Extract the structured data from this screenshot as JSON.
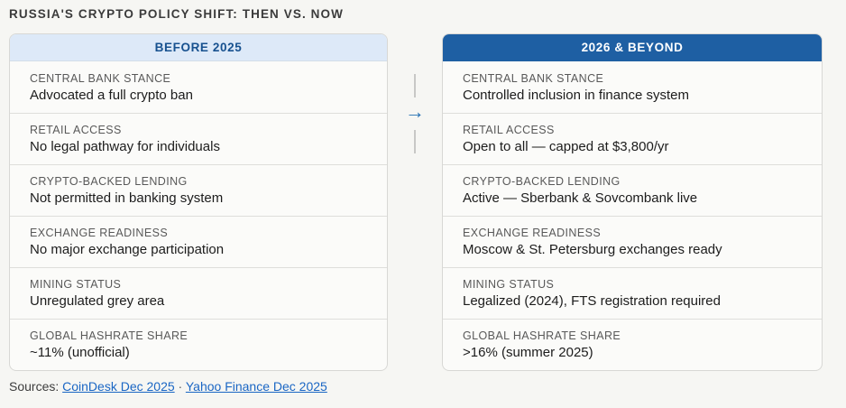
{
  "page": {
    "title": "RUSSIA'S CRYPTO POLICY SHIFT: THEN VS. NOW",
    "sources": {
      "prefix": "Sources:",
      "separator": "·",
      "links": [
        {
          "label": "CoinDesk Dec 2025"
        },
        {
          "label": "Yahoo Finance Dec 2025"
        }
      ]
    }
  },
  "colors": {
    "page_bg": "#f6f6f3",
    "card_bg": "#fbfbf9",
    "card_border": "#d8d8d5",
    "header_light_bg": "#dde9f8",
    "header_light_text": "#17518f",
    "header_solid_bg": "#1e5fa3",
    "header_solid_text": "#ffffff",
    "label_text": "#595959",
    "value_text": "#1c1c1c",
    "arrow_blue": "#2470b3",
    "link_blue": "#1a66c4"
  },
  "comparison": {
    "arrow_icon": "→",
    "columns": [
      {
        "id": "before",
        "header": "BEFORE 2025",
        "rows": [
          {
            "label": "CENTRAL BANK STANCE",
            "value": "Advocated a full crypto ban"
          },
          {
            "label": "RETAIL ACCESS",
            "value": "No legal pathway for individuals"
          },
          {
            "label": "CRYPTO-BACKED LENDING",
            "value": "Not permitted in banking system"
          },
          {
            "label": "EXCHANGE READINESS",
            "value": "No major exchange participation"
          },
          {
            "label": "MINING STATUS",
            "value": "Unregulated grey area"
          },
          {
            "label": "GLOBAL HASHRATE SHARE",
            "value": "~11% (unofficial)"
          }
        ]
      },
      {
        "id": "after",
        "header": "2026 & BEYOND",
        "rows": [
          {
            "label": "CENTRAL BANK STANCE",
            "value": "Controlled inclusion in finance system"
          },
          {
            "label": "RETAIL ACCESS",
            "value": "Open to all — capped at $3,800/yr"
          },
          {
            "label": "CRYPTO-BACKED LENDING",
            "value": "Active — Sberbank & Sovcombank live"
          },
          {
            "label": "EXCHANGE READINESS",
            "value": "Moscow & St. Petersburg exchanges ready"
          },
          {
            "label": "MINING STATUS",
            "value": "Legalized (2024), FTS registration required"
          },
          {
            "label": "GLOBAL HASHRATE SHARE",
            "value": ">16% (summer 2025)"
          }
        ]
      }
    ]
  },
  "chart_data": {
    "type": "table",
    "title": "RUSSIA'S CRYPTO POLICY SHIFT: THEN VS. NOW",
    "columns": [
      "BEFORE 2025",
      "2026 & BEYOND"
    ],
    "row_labels": [
      "CENTRAL BANK STANCE",
      "RETAIL ACCESS",
      "CRYPTO-BACKED LENDING",
      "EXCHANGE READINESS",
      "MINING STATUS",
      "GLOBAL HASHRATE SHARE"
    ],
    "rows": [
      [
        "Advocated a full crypto ban",
        "Controlled inclusion in finance system"
      ],
      [
        "No legal pathway for individuals",
        "Open to all — capped at $3,800/yr"
      ],
      [
        "Not permitted in banking system",
        "Active — Sberbank & Sovcombank live"
      ],
      [
        "No major exchange participation",
        "Moscow & St. Petersburg exchanges ready"
      ],
      [
        "Unregulated grey area",
        "Legalized (2024), FTS registration required"
      ],
      [
        "~11% (unofficial)",
        ">16% (summer 2025)"
      ]
    ],
    "annotations": [
      "Sources: CoinDesk Dec 2025 · Yahoo Finance Dec 2025"
    ]
  }
}
